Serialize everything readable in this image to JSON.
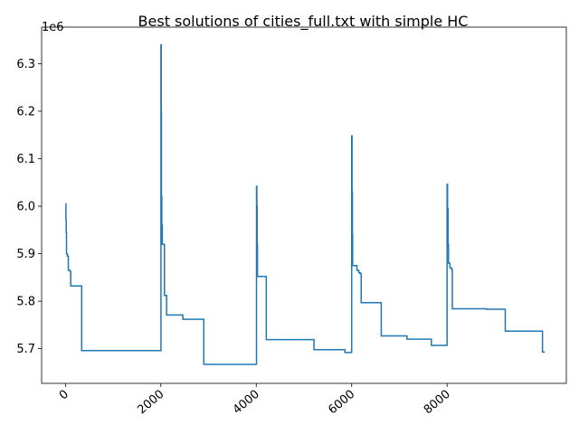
{
  "chart_data": {
    "type": "line",
    "title": "Best solutions of cities_full.txt with simple HC",
    "xlabel": "",
    "ylabel": "",
    "y_offset_label": "1e6",
    "xlim": [
      -500,
      10500
    ],
    "ylim": [
      5.627,
      6.377
    ],
    "x_ticks": [
      0,
      2000,
      4000,
      6000,
      8000
    ],
    "x_tick_labels": [
      "0",
      "2000",
      "4000",
      "6000",
      "8000"
    ],
    "x_tick_rotation_deg": 40,
    "y_ticks": [
      5.7,
      5.8,
      5.9,
      6.0,
      6.1,
      6.2,
      6.3
    ],
    "y_tick_labels": [
      "5.7",
      "5.8",
      "5.9",
      "6.0",
      "6.1",
      "6.2",
      "6.3"
    ],
    "grid": false,
    "color": "#1f77b4",
    "series": [
      {
        "step": "post",
        "points": [
          [
            0,
            6.005
          ],
          [
            10,
            5.972
          ],
          [
            15,
            5.945
          ],
          [
            22,
            5.9
          ],
          [
            40,
            5.895
          ],
          [
            60,
            5.865
          ],
          [
            100,
            5.862
          ],
          [
            110,
            5.832
          ],
          [
            200,
            5.832
          ],
          [
            330,
            5.832
          ],
          [
            340,
            5.696
          ],
          [
            2000,
            5.696
          ],
          [
            2002,
            6.34
          ],
          [
            2008,
            6.2
          ],
          [
            2012,
            6.02
          ],
          [
            2020,
            5.96
          ],
          [
            2030,
            5.92
          ],
          [
            2070,
            5.92
          ],
          [
            2075,
            5.812
          ],
          [
            2110,
            5.812
          ],
          [
            2120,
            5.771
          ],
          [
            2450,
            5.771
          ],
          [
            2460,
            5.762
          ],
          [
            2890,
            5.762
          ],
          [
            2900,
            5.667
          ],
          [
            4000,
            5.667
          ],
          [
            4005,
            6.042
          ],
          [
            4012,
            6.0
          ],
          [
            4018,
            5.92
          ],
          [
            4025,
            5.852
          ],
          [
            4200,
            5.852
          ],
          [
            4210,
            5.719
          ],
          [
            5200,
            5.719
          ],
          [
            5210,
            5.698
          ],
          [
            5850,
            5.698
          ],
          [
            5860,
            5.692
          ],
          [
            5990,
            5.692
          ],
          [
            6000,
            6.148
          ],
          [
            6008,
            6.03
          ],
          [
            6015,
            5.94
          ],
          [
            6020,
            5.875
          ],
          [
            6100,
            5.875
          ],
          [
            6110,
            5.865
          ],
          [
            6150,
            5.86
          ],
          [
            6180,
            5.858
          ],
          [
            6200,
            5.797
          ],
          [
            6610,
            5.797
          ],
          [
            6620,
            5.727
          ],
          [
            7150,
            5.727
          ],
          [
            7160,
            5.72
          ],
          [
            7660,
            5.72
          ],
          [
            7670,
            5.707
          ],
          [
            7990,
            5.707
          ],
          [
            8000,
            6.046
          ],
          [
            8010,
            5.995
          ],
          [
            8020,
            5.92
          ],
          [
            8030,
            5.88
          ],
          [
            8060,
            5.87
          ],
          [
            8100,
            5.866
          ],
          [
            8110,
            5.784
          ],
          [
            8810,
            5.784
          ],
          [
            8820,
            5.783
          ],
          [
            9210,
            5.783
          ],
          [
            9220,
            5.737
          ],
          [
            9990,
            5.737
          ],
          [
            10000,
            5.693
          ],
          [
            10050,
            5.693
          ]
        ]
      }
    ]
  }
}
